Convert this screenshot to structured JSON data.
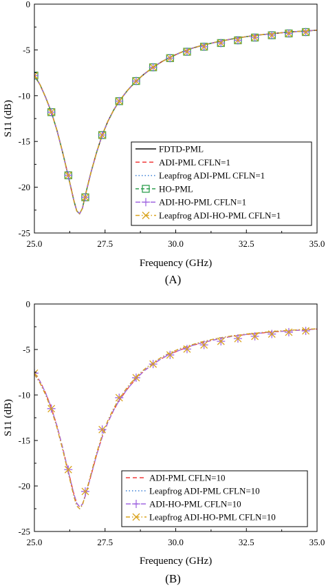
{
  "chart_data": [
    {
      "panel_label": "(A)",
      "type": "line",
      "xlabel": "Frequency (GHz)",
      "ylabel": "S11 (dB)",
      "xlim": [
        25,
        35
      ],
      "ylim": [
        -25,
        0
      ],
      "xticks": [
        25.0,
        27.5,
        30.0,
        32.5,
        35.0
      ],
      "xtick_labels": [
        "25.0",
        "27.5",
        "30.0",
        "32.5",
        "35.0"
      ],
      "yticks": [
        0,
        -5,
        -10,
        -15,
        -20,
        -25
      ],
      "ytick_labels": [
        "0",
        "-5",
        "-10",
        "-15",
        "-20",
        "-25"
      ],
      "grid": false,
      "legend_position": "bottom-right",
      "x": [
        25.0,
        25.2,
        25.4,
        25.6,
        25.8,
        26.0,
        26.2,
        26.4,
        26.5,
        26.6,
        26.7,
        26.8,
        27.0,
        27.2,
        27.4,
        27.6,
        27.8,
        28.0,
        28.3,
        28.6,
        28.9,
        29.2,
        29.5,
        29.8,
        30.2,
        30.6,
        31.0,
        31.5,
        32.0,
        32.5,
        33.0,
        33.5,
        34.0,
        34.5,
        35.0
      ],
      "series": [
        {
          "name": "FDTD-PML",
          "color": "#333333",
          "dash": "solid",
          "marker": "none",
          "values": [
            -7.8,
            -8.8,
            -10.2,
            -11.8,
            -13.8,
            -16.2,
            -18.8,
            -21.5,
            -22.6,
            -22.9,
            -22.3,
            -20.9,
            -18.4,
            -16.2,
            -14.3,
            -12.8,
            -11.6,
            -10.6,
            -9.4,
            -8.4,
            -7.6,
            -6.9,
            -6.3,
            -5.8,
            -5.25,
            -4.8,
            -4.45,
            -4.1,
            -3.8,
            -3.55,
            -3.35,
            -3.2,
            -3.05,
            -2.95,
            -2.85
          ]
        },
        {
          "name": "ADI-PML CFLN=1",
          "color": "#f03a3a",
          "dash": "6,4",
          "marker": "none",
          "values": [
            -7.8,
            -8.8,
            -10.2,
            -11.8,
            -13.8,
            -16.2,
            -18.8,
            -21.5,
            -22.6,
            -22.9,
            -22.3,
            -20.9,
            -18.4,
            -16.2,
            -14.3,
            -12.8,
            -11.6,
            -10.6,
            -9.4,
            -8.4,
            -7.6,
            -6.9,
            -6.3,
            -5.8,
            -5.25,
            -4.8,
            -4.45,
            -4.1,
            -3.8,
            -3.55,
            -3.35,
            -3.2,
            -3.05,
            -2.95,
            -2.85
          ]
        },
        {
          "name": "Leapfrog ADI-PML CFLN=1",
          "color": "#3a7fd6",
          "dash": "1.5,3",
          "marker": "none",
          "values": [
            -7.8,
            -8.8,
            -10.2,
            -11.8,
            -13.8,
            -16.2,
            -18.8,
            -21.5,
            -22.6,
            -22.9,
            -22.3,
            -20.9,
            -18.4,
            -16.2,
            -14.3,
            -12.8,
            -11.6,
            -10.6,
            -9.4,
            -8.4,
            -7.6,
            -6.9,
            -6.3,
            -5.8,
            -5.25,
            -4.8,
            -4.45,
            -4.1,
            -3.8,
            -3.55,
            -3.35,
            -3.2,
            -3.05,
            -2.95,
            -2.85
          ]
        },
        {
          "name": "HO-PML",
          "color": "#2e9e4f",
          "dash": "5,3",
          "marker": "square",
          "values": [
            -7.8,
            -8.8,
            -10.2,
            -11.8,
            -13.8,
            -16.2,
            -18.8,
            -21.5,
            -22.6,
            -22.9,
            -22.3,
            -20.9,
            -18.4,
            -16.2,
            -14.3,
            -12.8,
            -11.6,
            -10.6,
            -9.4,
            -8.4,
            -7.6,
            -6.9,
            -6.3,
            -5.8,
            -5.25,
            -4.8,
            -4.45,
            -4.1,
            -3.8,
            -3.55,
            -3.35,
            -3.2,
            -3.05,
            -2.95,
            -2.85
          ],
          "markers_x": [
            25.0,
            25.6,
            26.2,
            26.8,
            27.4,
            28.0,
            28.6,
            29.2,
            29.8,
            30.4,
            31.0,
            31.6,
            32.2,
            32.8,
            33.4,
            34.0,
            34.6
          ],
          "markers_y": [
            -7.8,
            -11.8,
            -18.7,
            -21.1,
            -14.3,
            -10.6,
            -8.4,
            -6.9,
            -5.9,
            -5.2,
            -4.65,
            -4.25,
            -3.95,
            -3.65,
            -3.4,
            -3.2,
            -3.05
          ]
        },
        {
          "name": "ADI-HO-PML CFLN=1",
          "color": "#a066e0",
          "dash": "7,4",
          "marker": "plus",
          "values": [
            -7.8,
            -8.8,
            -10.2,
            -11.8,
            -13.8,
            -16.2,
            -18.8,
            -21.5,
            -22.6,
            -22.9,
            -22.3,
            -20.9,
            -18.4,
            -16.2,
            -14.3,
            -12.8,
            -11.6,
            -10.6,
            -9.4,
            -8.4,
            -7.6,
            -6.9,
            -6.3,
            -5.8,
            -5.25,
            -4.8,
            -4.45,
            -4.1,
            -3.8,
            -3.55,
            -3.35,
            -3.2,
            -3.05,
            -2.95,
            -2.85
          ],
          "markers_x": [
            25.0,
            25.6,
            26.2,
            26.8,
            27.4,
            28.0,
            28.6,
            29.2,
            29.8,
            30.4,
            31.0,
            31.6,
            32.2,
            32.8,
            33.4,
            34.0,
            34.6
          ],
          "markers_y": [
            -7.8,
            -11.8,
            -18.7,
            -21.1,
            -14.3,
            -10.6,
            -8.4,
            -6.9,
            -5.9,
            -5.2,
            -4.65,
            -4.25,
            -3.95,
            -3.65,
            -3.4,
            -3.2,
            -3.05
          ]
        },
        {
          "name": "Leapfrog ADI-HO-PML CFLN=1",
          "color": "#d9a21b",
          "dash": "6,3,1.5,3",
          "marker": "x",
          "values": [
            -7.8,
            -8.8,
            -10.2,
            -11.8,
            -13.8,
            -16.2,
            -18.8,
            -21.5,
            -22.6,
            -22.9,
            -22.3,
            -20.9,
            -18.4,
            -16.2,
            -14.3,
            -12.8,
            -11.6,
            -10.6,
            -9.4,
            -8.4,
            -7.6,
            -6.9,
            -6.3,
            -5.8,
            -5.25,
            -4.8,
            -4.45,
            -4.1,
            -3.8,
            -3.55,
            -3.35,
            -3.2,
            -3.05,
            -2.95,
            -2.85
          ],
          "markers_x": [
            25.0,
            25.6,
            26.2,
            26.8,
            27.4,
            28.0,
            28.6,
            29.2,
            29.8,
            30.4,
            31.0,
            31.6,
            32.2,
            32.8,
            33.4,
            34.0,
            34.6
          ],
          "markers_y": [
            -7.8,
            -11.8,
            -18.7,
            -21.1,
            -14.3,
            -10.6,
            -8.4,
            -6.9,
            -5.9,
            -5.2,
            -4.65,
            -4.25,
            -3.95,
            -3.65,
            -3.4,
            -3.2,
            -3.05
          ]
        }
      ]
    },
    {
      "panel_label": "(B)",
      "type": "line",
      "xlabel": "Frequency (GHz)",
      "ylabel": "S11 (dB)",
      "xlim": [
        25,
        35
      ],
      "ylim": [
        -25,
        0
      ],
      "xticks": [
        25.0,
        27.5,
        30.0,
        32.5,
        35.0
      ],
      "xtick_labels": [
        "25.0",
        "27.5",
        "30.0",
        "32.5",
        "35.0"
      ],
      "yticks": [
        0,
        -5,
        -10,
        -15,
        -20,
        -25
      ],
      "ytick_labels": [
        "0",
        "-5",
        "-10",
        "-15",
        "-20",
        "-25"
      ],
      "grid": false,
      "legend_position": "bottom-right",
      "x": [
        25.0,
        25.2,
        25.4,
        25.6,
        25.8,
        26.0,
        26.2,
        26.4,
        26.5,
        26.6,
        26.7,
        26.8,
        27.0,
        27.2,
        27.4,
        27.6,
        27.8,
        28.0,
        28.3,
        28.6,
        28.9,
        29.2,
        29.5,
        29.8,
        30.2,
        30.6,
        31.0,
        31.5,
        32.0,
        32.5,
        33.0,
        33.5,
        34.0,
        34.5,
        35.0
      ],
      "series": [
        {
          "name": "ADI-PML CFLN=10",
          "color": "#f03a3a",
          "dash": "6,4",
          "marker": "none",
          "values": [
            -7.6,
            -8.5,
            -9.8,
            -11.4,
            -13.4,
            -15.8,
            -18.4,
            -20.9,
            -21.9,
            -22.3,
            -22.0,
            -21.1,
            -18.9,
            -16.6,
            -14.6,
            -13.0,
            -11.7,
            -10.6,
            -9.3,
            -8.2,
            -7.3,
            -6.6,
            -6.0,
            -5.5,
            -5.0,
            -4.55,
            -4.2,
            -3.85,
            -3.55,
            -3.35,
            -3.2,
            -3.05,
            -2.95,
            -2.85,
            -2.75
          ]
        },
        {
          "name": "Leapfrog ADI-PML CFLN=10",
          "color": "#3a7fd6",
          "dash": "1.5,3",
          "marker": "none",
          "values": [
            -7.7,
            -8.7,
            -10.0,
            -11.6,
            -13.6,
            -16.0,
            -18.6,
            -21.2,
            -22.2,
            -22.5,
            -22.1,
            -21.0,
            -18.7,
            -16.4,
            -14.4,
            -12.8,
            -11.5,
            -10.4,
            -9.1,
            -8.0,
            -7.15,
            -6.45,
            -5.85,
            -5.35,
            -4.85,
            -4.45,
            -4.1,
            -3.75,
            -3.5,
            -3.3,
            -3.15,
            -3.0,
            -2.9,
            -2.8,
            -2.72
          ]
        },
        {
          "name": "ADI-HO-PML CFLN=10",
          "color": "#a066e0",
          "dash": "7,4",
          "marker": "plus",
          "values": [
            -7.6,
            -8.5,
            -9.8,
            -11.4,
            -13.4,
            -15.8,
            -18.4,
            -20.9,
            -21.9,
            -22.3,
            -22.0,
            -21.1,
            -18.9,
            -16.6,
            -14.6,
            -13.0,
            -11.7,
            -10.6,
            -9.3,
            -8.2,
            -7.3,
            -6.6,
            -6.0,
            -5.5,
            -5.0,
            -4.55,
            -4.2,
            -3.85,
            -3.55,
            -3.35,
            -3.2,
            -3.05,
            -2.95,
            -2.85,
            -2.75
          ],
          "markers_x": [
            25.0,
            25.6,
            26.2,
            26.8,
            27.4,
            28.0,
            28.6,
            29.2,
            29.8,
            30.4,
            31.0,
            31.6,
            32.2,
            32.8,
            33.4,
            34.0,
            34.6
          ],
          "markers_y": [
            -7.6,
            -11.5,
            -18.2,
            -20.6,
            -13.8,
            -10.3,
            -8.1,
            -6.6,
            -5.6,
            -4.95,
            -4.5,
            -4.1,
            -3.8,
            -3.55,
            -3.3,
            -3.1,
            -2.95
          ]
        },
        {
          "name": "Leapfrog ADI-HO-PML CFLN=10",
          "color": "#d9a21b",
          "dash": "6,3,1.5,3",
          "marker": "x",
          "values": [
            -7.7,
            -8.7,
            -10.0,
            -11.6,
            -13.6,
            -16.0,
            -18.6,
            -21.2,
            -22.2,
            -22.5,
            -22.1,
            -21.0,
            -18.7,
            -16.4,
            -14.4,
            -12.8,
            -11.5,
            -10.4,
            -9.1,
            -8.0,
            -7.15,
            -6.45,
            -5.85,
            -5.35,
            -4.85,
            -4.45,
            -4.1,
            -3.75,
            -3.5,
            -3.3,
            -3.15,
            -3.0,
            -2.9,
            -2.8,
            -2.72
          ],
          "markers_x": [
            25.0,
            25.6,
            26.2,
            26.8,
            27.4,
            28.0,
            28.6,
            29.2,
            29.8,
            30.4,
            31.0,
            31.6,
            32.2,
            32.8,
            33.4,
            34.0,
            34.6
          ],
          "markers_y": [
            -7.6,
            -11.5,
            -18.2,
            -20.6,
            -13.8,
            -10.3,
            -8.1,
            -6.6,
            -5.6,
            -4.95,
            -4.5,
            -4.1,
            -3.8,
            -3.55,
            -3.3,
            -3.1,
            -2.95
          ]
        }
      ]
    }
  ]
}
